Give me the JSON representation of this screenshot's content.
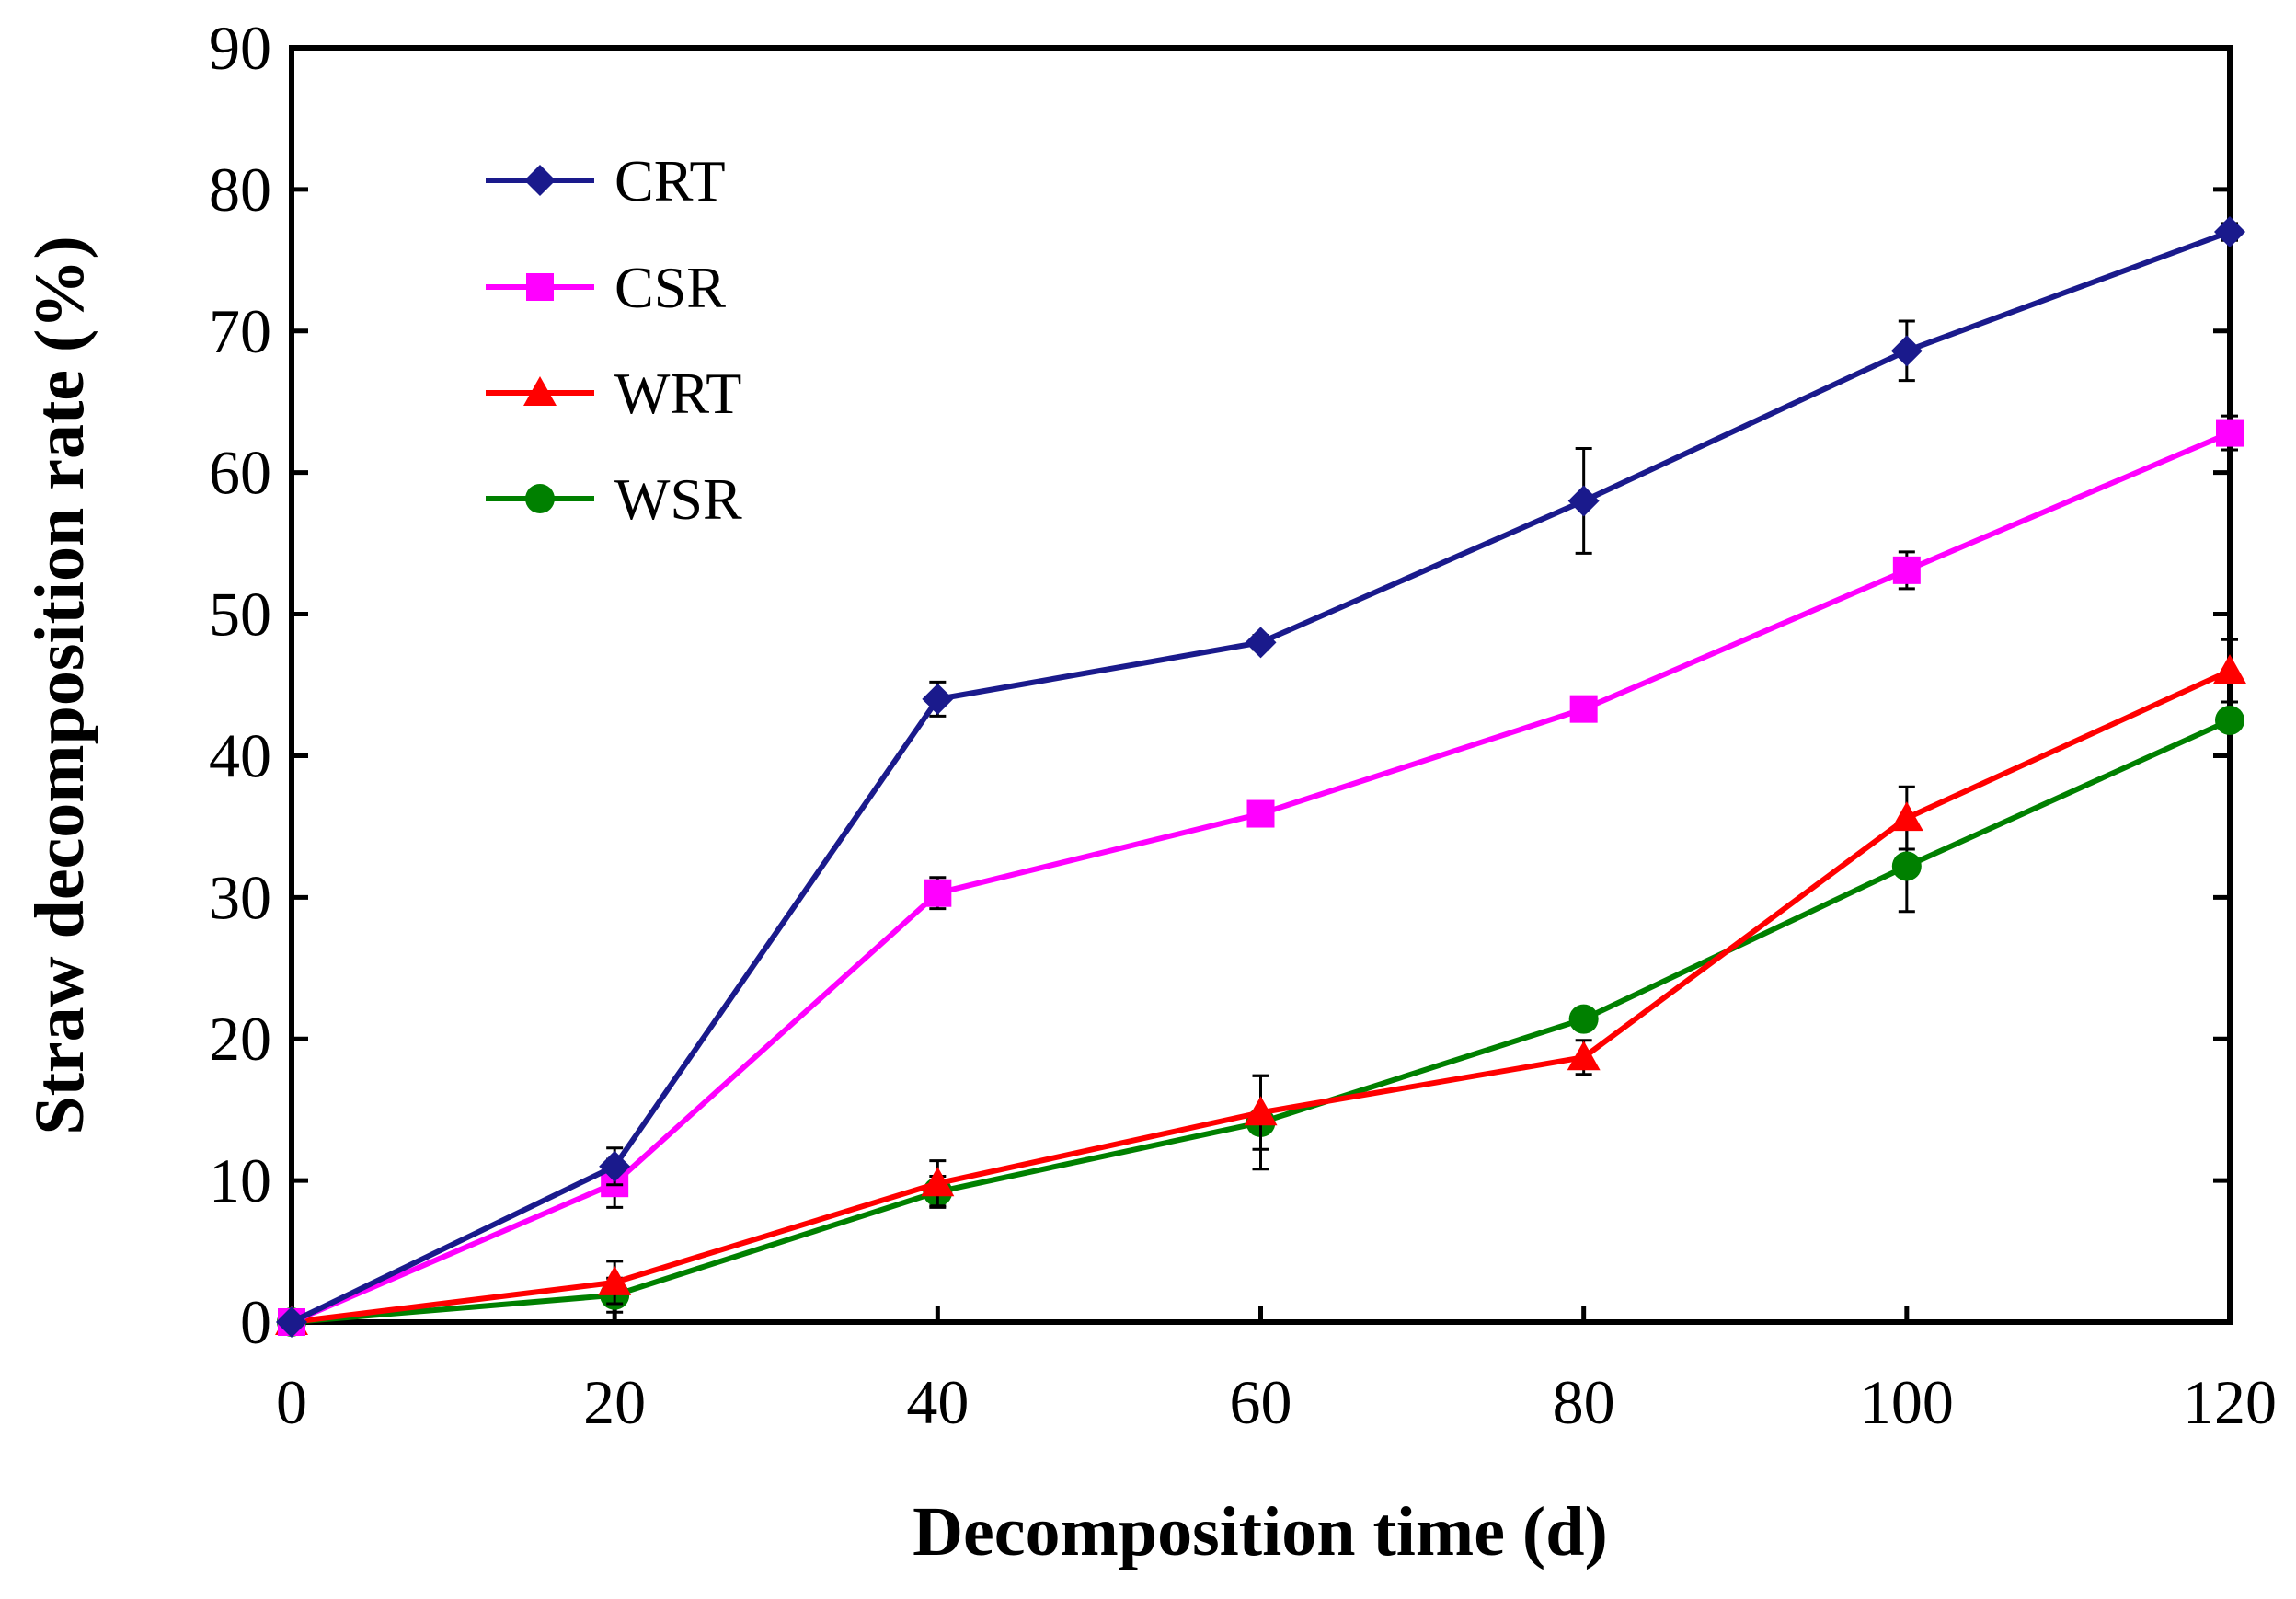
{
  "chart_data": {
    "type": "line",
    "title": "",
    "xlabel": "Decomposition time (d)",
    "ylabel": "Straw decomposition rate (%)",
    "x": [
      0,
      20,
      40,
      60,
      80,
      100,
      120
    ],
    "xlim": [
      0,
      120
    ],
    "ylim": [
      0,
      90
    ],
    "xticks": [
      "0",
      "20",
      "40",
      "60",
      "80",
      "100",
      "120"
    ],
    "yticks": [
      "0",
      "10",
      "20",
      "30",
      "40",
      "50",
      "60",
      "70",
      "80",
      "90"
    ],
    "grid": false,
    "legend_position": "top-left",
    "series": [
      {
        "name": "CRT",
        "color": "#1a1a8c",
        "marker": "diamond",
        "values": [
          0,
          11,
          44,
          48,
          58,
          68.6,
          77
        ],
        "errors": [
          0,
          1.3,
          1.2,
          0.5,
          3.7,
          2.1,
          0.6
        ]
      },
      {
        "name": "CSR",
        "color": "#ff00ff",
        "marker": "square",
        "values": [
          0,
          9.8,
          30.3,
          35.9,
          43.3,
          53.1,
          62.8
        ],
        "errors": [
          0,
          1.7,
          1.1,
          0.5,
          0.5,
          1.3,
          1.2
        ]
      },
      {
        "name": "WRT",
        "color": "#ff0000",
        "marker": "triangle",
        "values": [
          0,
          2.8,
          9.8,
          14.8,
          18.7,
          35.6,
          46
        ],
        "errors": [
          0,
          1.5,
          1.6,
          2.6,
          1.2,
          2.2,
          2.2
        ]
      },
      {
        "name": "WSR",
        "color": "#008000",
        "marker": "circle",
        "values": [
          0,
          1.9,
          9.2,
          14.1,
          21.4,
          32.2,
          42.5
        ],
        "errors": [
          0,
          1.2,
          1.1,
          3.3,
          0.5,
          3.2,
          0.5
        ]
      }
    ]
  }
}
